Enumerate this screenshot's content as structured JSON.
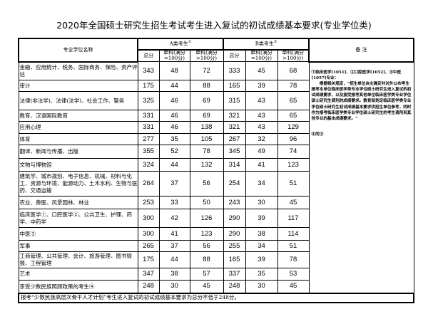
{
  "title": "2020年全国硕士研究生招生考试考生进入复试的初试成绩基本要求(专业学位类)",
  "header": {
    "name": "专业学位名称",
    "a_group": "A类考生",
    "b_group": "B类考生",
    "group_mark": "①",
    "total": "总分",
    "single100": "单科(满分=100分)",
    "single_gt100": "单科(满分>100分)",
    "remark": "备 注"
  },
  "rows": [
    {
      "name": "金融、应用统计、税务、国际商务、保险、资产评估",
      "a": [
        "343",
        "48",
        "72"
      ],
      "b": [
        "333",
        "45",
        "68"
      ]
    },
    {
      "name": "审计",
      "a": [
        "175",
        "44",
        "88"
      ],
      "b": [
        "165",
        "39",
        "78"
      ]
    },
    {
      "name": "法律(非法学)、法律(法学)、社会工作、警务",
      "a": [
        "325",
        "46",
        "69"
      ],
      "b": [
        "315",
        "43",
        "65"
      ]
    },
    {
      "name": "教育、汉语国际教育",
      "a": [
        "331",
        "46",
        "69"
      ],
      "b": [
        "321",
        "43",
        "65"
      ]
    },
    {
      "name": "应用心理",
      "a": [
        "331",
        "46",
        "138"
      ],
      "b": [
        "321",
        "43",
        "129"
      ]
    },
    {
      "name": "体育",
      "a": [
        "277",
        "35",
        "105"
      ],
      "b": [
        "267",
        "32",
        "96"
      ]
    },
    {
      "name": "翻译、新闻与传播、出版",
      "a": [
        "355",
        "52",
        "78"
      ],
      "b": [
        "345",
        "49",
        "74"
      ]
    },
    {
      "name": "文物与博物馆",
      "a": [
        "324",
        "44",
        "132"
      ],
      "b": [
        "314",
        "41",
        "123"
      ]
    },
    {
      "name": "建筑学、城市规划、电子信息、机械、材料与化工、资源与环境、能源动力、土木水利、生物与医药、交通运输",
      "a": [
        "264",
        "37",
        "56"
      ],
      "b": [
        "254",
        "34",
        "51"
      ]
    },
    {
      "name": "农业、兽医、风景园林、林业",
      "a": [
        "253",
        "33",
        "50"
      ],
      "b": [
        "243",
        "30",
        "45"
      ]
    },
    {
      "name": "临床医学①、口腔医学②、公共卫生、护理、药学、中药学",
      "a": [
        "300",
        "42",
        "126"
      ],
      "b": [
        "290",
        "39",
        "117"
      ]
    },
    {
      "name": "中医③",
      "a": [
        "300",
        "41",
        "123"
      ],
      "b": [
        "290",
        "38",
        "114"
      ]
    },
    {
      "name": "军事",
      "a": [
        "265",
        "37",
        "56"
      ],
      "b": [
        "255",
        "34",
        "51"
      ]
    },
    {
      "name": "工商管理、公共管理、会计、旅游管理、图书情报、工程管理",
      "a": [
        "175",
        "44",
        "88"
      ],
      "b": [
        "165",
        "39",
        "78"
      ]
    },
    {
      "name": "艺术",
      "a": [
        "347",
        "38",
        "57"
      ],
      "b": [
        "337",
        "35",
        "53"
      ]
    },
    {
      "name": "享受少数民族照顾政策的考生④",
      "a": [
        "248",
        "30",
        "45"
      ],
      "b": [
        "248",
        "30",
        "45"
      ]
    }
  ],
  "remark_text": "①临床医学[1051]、②口腔医学[1052]、③中医[1057]专业：\n　　根据相关规定，“招生单位自主确定并对外公布考生报考本单位临床医学类专业学位硕士研究生进入复试的初试成绩要求，以及接受报考其他单位临床医学类专业学位硕士研究生调剂的成绩要求。教育部划定临床医学类专业学位硕士研究生初试成绩基本要求供招生单位参考，同时作为报考临床医学类专业学位硕士研究生的考生调剂到其他专业的基本成绩要求。”",
  "remark_text2": "④同③",
  "footer": "报考“少数民族高层次骨干人才计划”考生进入复试的初试成绩基本要求为总分不低于248分。"
}
